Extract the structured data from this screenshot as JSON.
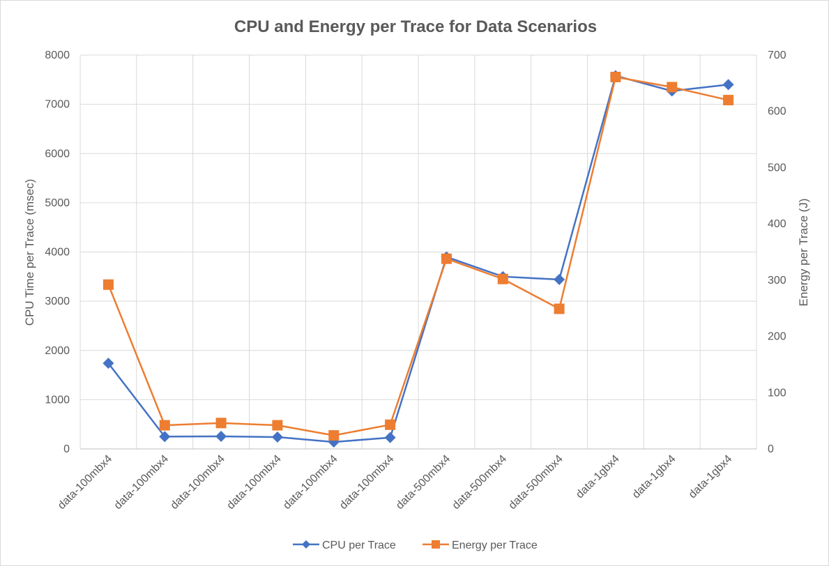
{
  "chart_data": {
    "type": "line",
    "title": "CPU and Energy per Trace for Data Scenarios",
    "categories": [
      "data-100mbx4",
      "data-100mbx4",
      "data-100mbx4",
      "data-100mbx4",
      "data-100mbx4",
      "data-100mbx4",
      "data-500mbx4",
      "data-500mbx4",
      "data-500mbx4",
      "data-1gbx4",
      "data-1gbx4",
      "data-1gbx4"
    ],
    "series": [
      {
        "name": "CPU per Trace",
        "axis": "left",
        "color": "#4472c4",
        "marker": "diamond",
        "values": [
          1740,
          250,
          255,
          240,
          140,
          230,
          3900,
          3500,
          3440,
          7580,
          7270,
          7400
        ]
      },
      {
        "name": "Energy per Trace",
        "axis": "right",
        "color": "#ed7d31",
        "marker": "square",
        "values": [
          292,
          42,
          46,
          42,
          24,
          43,
          338,
          302,
          249,
          661,
          643,
          620
        ]
      }
    ],
    "ylabel": "CPU Time per Trace (msec)",
    "y2label": "Energy per Trace (J)",
    "ylim": [
      0,
      8000
    ],
    "y2lim": [
      0,
      700
    ],
    "yticks": [
      "0",
      "1000",
      "2000",
      "3000",
      "4000",
      "5000",
      "6000",
      "7000",
      "8000"
    ],
    "y2ticks": [
      "0",
      "100",
      "200",
      "300",
      "400",
      "500",
      "600",
      "700"
    ],
    "grid": true,
    "legend_position": "bottom"
  }
}
